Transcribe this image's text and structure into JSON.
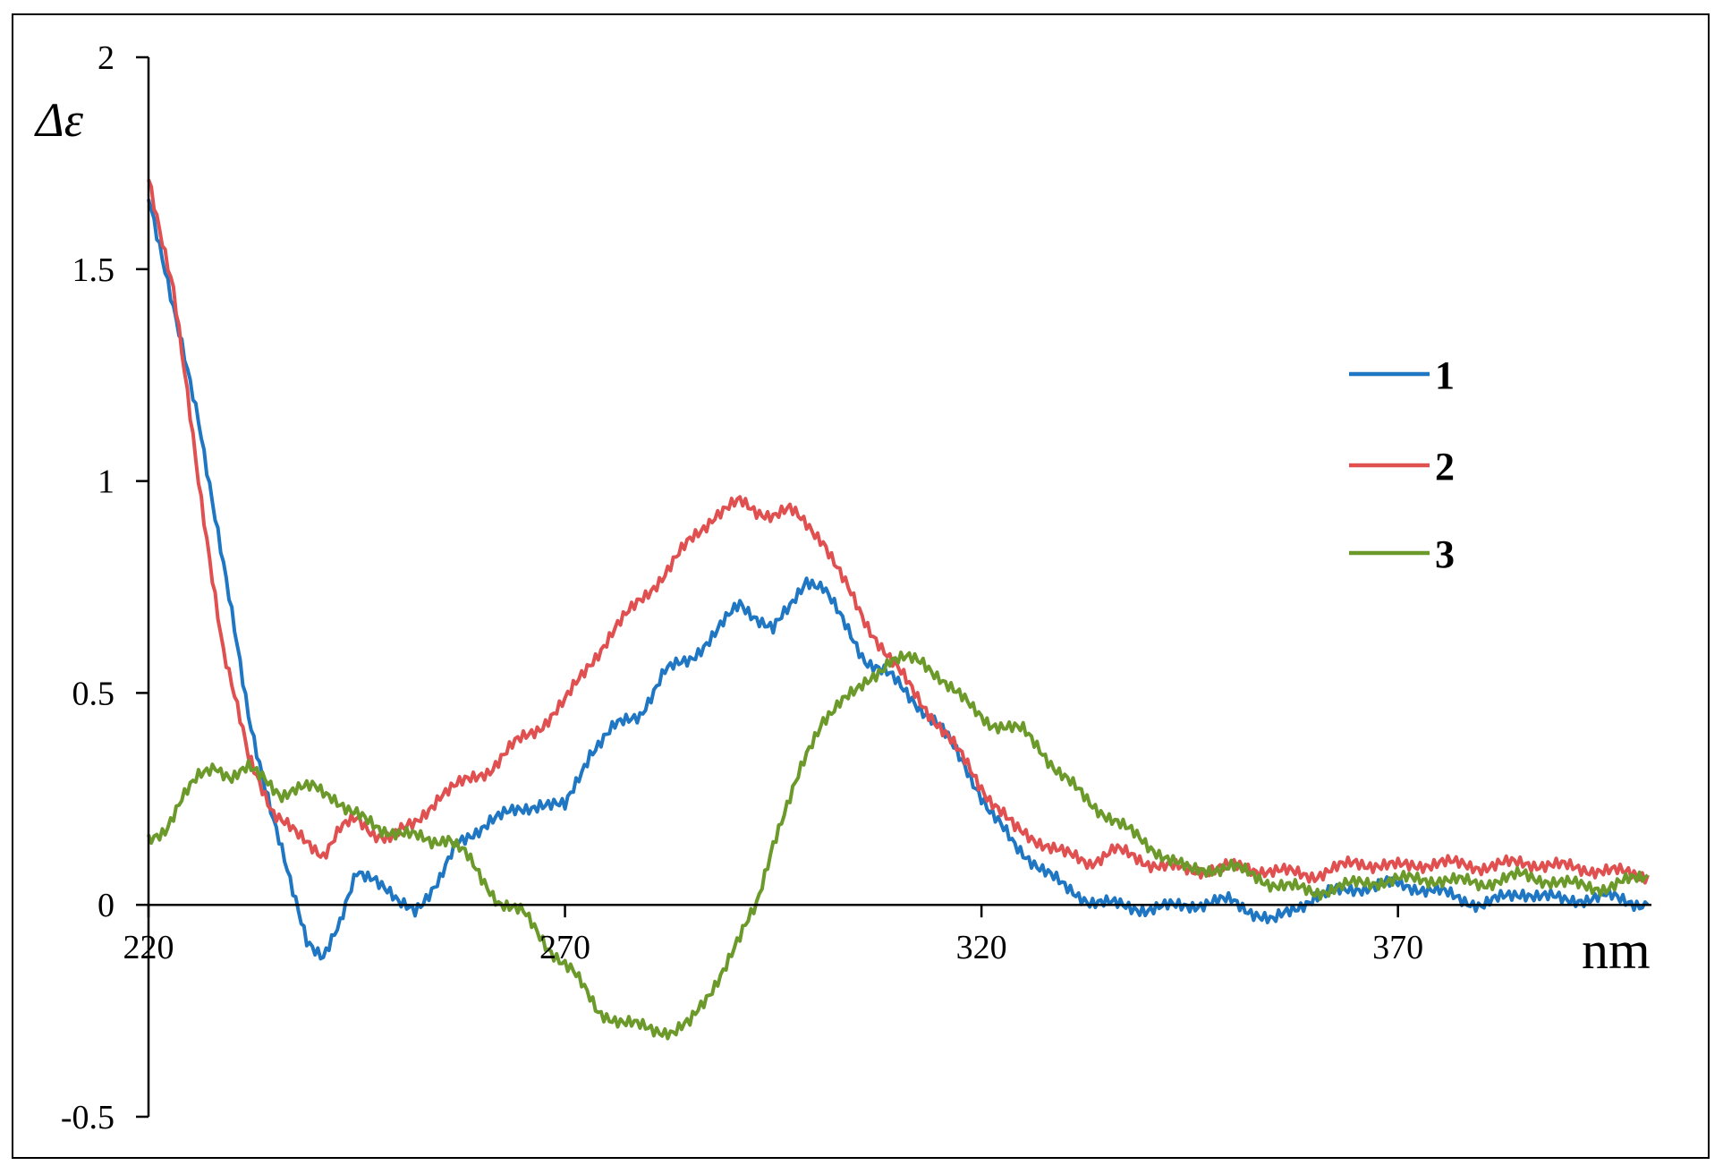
{
  "chart_data": {
    "type": "line",
    "xlabel": "nm",
    "ylabel": "Δε",
    "xlim": [
      220,
      400
    ],
    "ylim": [
      -0.5,
      2
    ],
    "x_ticks": [
      220,
      270,
      320,
      370
    ],
    "x_tick_labels": [
      "220",
      "270",
      "320",
      "370"
    ],
    "y_ticks": [
      -0.5,
      0,
      0.5,
      1,
      1.5,
      2
    ],
    "y_tick_labels": [
      "-0.5",
      "0",
      "0.5",
      "1",
      "1.5",
      "2"
    ],
    "grid": false,
    "legend_position": "right",
    "series": [
      {
        "name": "1",
        "color": "#1f77c4",
        "x": [
          220,
          223,
          226,
          229,
          232,
          235,
          237,
          239,
          241,
          243,
          245,
          247,
          250,
          252,
          255,
          257,
          259,
          261,
          264,
          267,
          270,
          273,
          276,
          279,
          282,
          285,
          288,
          291,
          293,
          295,
          297,
          299,
          301,
          303,
          306,
          309,
          312,
          315,
          318,
          321,
          324,
          327,
          330,
          333,
          336,
          340,
          345,
          350,
          355,
          360,
          365,
          370,
          375,
          380,
          385,
          390,
          395,
          400
        ],
        "y": [
          1.68,
          1.4,
          1.15,
          0.8,
          0.45,
          0.2,
          0.05,
          -0.08,
          -0.12,
          -0.05,
          0.08,
          0.07,
          0.0,
          -0.01,
          0.06,
          0.14,
          0.17,
          0.2,
          0.22,
          0.24,
          0.23,
          0.36,
          0.42,
          0.45,
          0.55,
          0.58,
          0.64,
          0.71,
          0.68,
          0.65,
          0.7,
          0.77,
          0.75,
          0.68,
          0.58,
          0.54,
          0.48,
          0.42,
          0.33,
          0.22,
          0.14,
          0.09,
          0.04,
          0.01,
          0.0,
          -0.01,
          0.0,
          0.01,
          -0.04,
          0.02,
          0.04,
          0.05,
          0.03,
          0.0,
          0.03,
          0.01,
          0.02,
          0.0
        ]
      },
      {
        "name": "2",
        "color": "#e05050",
        "x": [
          220,
          223,
          226,
          229,
          232,
          235,
          238,
          241,
          243,
          245,
          247,
          249,
          252,
          255,
          258,
          261,
          264,
          267,
          270,
          273,
          276,
          279,
          282,
          285,
          288,
          291,
          293,
          295,
          297,
          299,
          301,
          303,
          306,
          309,
          312,
          315,
          318,
          321,
          324,
          327,
          330,
          333,
          336,
          340,
          345,
          350,
          355,
          360,
          365,
          370,
          375,
          380,
          385,
          390,
          395,
          400
        ],
        "y": [
          1.72,
          1.45,
          1.0,
          0.6,
          0.35,
          0.22,
          0.16,
          0.12,
          0.18,
          0.2,
          0.17,
          0.16,
          0.19,
          0.26,
          0.29,
          0.32,
          0.38,
          0.42,
          0.48,
          0.57,
          0.65,
          0.72,
          0.78,
          0.86,
          0.92,
          0.95,
          0.93,
          0.92,
          0.93,
          0.9,
          0.86,
          0.78,
          0.67,
          0.58,
          0.5,
          0.42,
          0.34,
          0.25,
          0.18,
          0.15,
          0.12,
          0.1,
          0.13,
          0.1,
          0.08,
          0.09,
          0.08,
          0.07,
          0.1,
          0.09,
          0.1,
          0.09,
          0.1,
          0.09,
          0.08,
          0.07
        ]
      },
      {
        "name": "3",
        "color": "#6b9a2a",
        "x": [
          220,
          222,
          224,
          226,
          228,
          230,
          232,
          234,
          236,
          238,
          240,
          242,
          244,
          246,
          248,
          250,
          252,
          254,
          256,
          258,
          260,
          262,
          265,
          268,
          271,
          274,
          277,
          280,
          283,
          285,
          287,
          289,
          291,
          293,
          295,
          297,
          299,
          301,
          303,
          305,
          307,
          309,
          311,
          313,
          315,
          317,
          319,
          321,
          323,
          325,
          327,
          329,
          331,
          333,
          336,
          340,
          345,
          350,
          355,
          360,
          365,
          370,
          375,
          380,
          385,
          390,
          395,
          400
        ],
        "y": [
          0.15,
          0.18,
          0.25,
          0.3,
          0.33,
          0.3,
          0.32,
          0.3,
          0.26,
          0.27,
          0.28,
          0.26,
          0.22,
          0.2,
          0.18,
          0.17,
          0.16,
          0.15,
          0.16,
          0.12,
          0.06,
          0.01,
          -0.02,
          -0.1,
          -0.16,
          -0.25,
          -0.28,
          -0.29,
          -0.3,
          -0.28,
          -0.22,
          -0.15,
          -0.08,
          0.0,
          0.15,
          0.25,
          0.35,
          0.44,
          0.48,
          0.5,
          0.54,
          0.58,
          0.58,
          0.57,
          0.54,
          0.5,
          0.46,
          0.43,
          0.42,
          0.41,
          0.37,
          0.32,
          0.28,
          0.24,
          0.2,
          0.14,
          0.08,
          0.09,
          0.05,
          0.03,
          0.05,
          0.06,
          0.06,
          0.05,
          0.07,
          0.05,
          0.04,
          0.07
        ]
      }
    ]
  }
}
